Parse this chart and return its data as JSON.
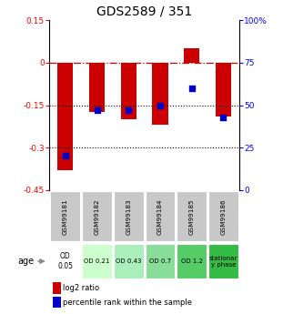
{
  "title": "GDS2589 / 351",
  "samples": [
    "GSM99181",
    "GSM99182",
    "GSM99183",
    "GSM99184",
    "GSM99185",
    "GSM99186"
  ],
  "log2_ratio": [
    -0.38,
    -0.175,
    -0.2,
    -0.22,
    0.05,
    -0.19
  ],
  "percentile_rank": [
    20,
    47,
    47,
    50,
    60,
    43
  ],
  "ylim_left": [
    -0.45,
    0.15
  ],
  "ylim_right": [
    0,
    100
  ],
  "yticks_left": [
    0.15,
    0.0,
    -0.15,
    -0.3,
    -0.45
  ],
  "yticks_right": [
    100,
    75,
    50,
    25,
    0
  ],
  "ytick_labels_left": [
    "0.15",
    "0",
    "-0.15",
    "-0.3",
    "-0.45"
  ],
  "ytick_labels_right": [
    "100%",
    "75",
    "50",
    "25",
    "0"
  ],
  "bar_color": "#cc0000",
  "dot_color": "#0000cc",
  "hline_zero_color": "#cc0000",
  "hline_m015_color": "#000000",
  "hline_m030_color": "#000000",
  "age_labels": [
    "OD\n0.05",
    "OD 0.21",
    "OD 0.43",
    "OD 0.7",
    "OD 1.2",
    "stationar\ny phase"
  ],
  "age_bg_colors": [
    "#ffffff",
    "#ccffcc",
    "#aaeebb",
    "#88dd99",
    "#55cc66",
    "#33bb44"
  ],
  "sample_bg_color": "#c8c8c8",
  "title_fontsize": 10,
  "tick_fontsize": 6.5,
  "legend_red": "log2 ratio",
  "legend_blue": "percentile rank within the sample",
  "bar_width": 0.5
}
